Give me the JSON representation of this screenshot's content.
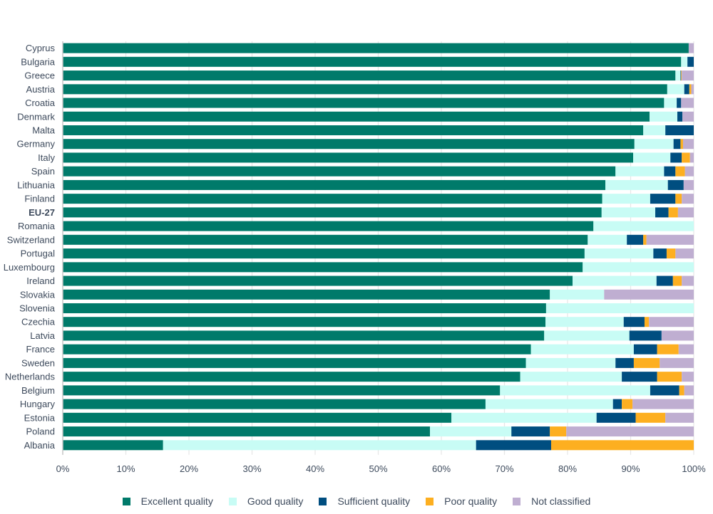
{
  "chart_data": {
    "type": "bar",
    "orientation": "horizontal",
    "stacked": true,
    "title": "",
    "xlabel": "",
    "ylabel": "",
    "xlim": [
      0,
      100
    ],
    "x_unit": "%",
    "x_ticks": [
      "0%",
      "10%",
      "20%",
      "30%",
      "40%",
      "50%",
      "60%",
      "70%",
      "80%",
      "90%",
      "100%"
    ],
    "grid": true,
    "legend_position": "bottom",
    "categories": [
      "Cyprus",
      "Bulgaria",
      "Greece",
      "Austria",
      "Croatia",
      "Denmark",
      "Malta",
      "Germany",
      "Italy",
      "Spain",
      "Lithuania",
      "Finland",
      "EU-27",
      "Romania",
      "Switzerland",
      "Portugal",
      "Luxembourg",
      "Ireland",
      "Slovakia",
      "Slovenia",
      "Czechia",
      "Latvia",
      "France",
      "Sweden",
      "Netherlands",
      "Belgium",
      "Hungary",
      "Estonia",
      "Poland",
      "Albania"
    ],
    "bold_categories": [
      "EU-27"
    ],
    "series": [
      {
        "name": "Excellent quality",
        "color": "#007a6a",
        "values": [
          99.2,
          98.0,
          97.1,
          95.8,
          95.3,
          93.0,
          92.0,
          90.6,
          90.4,
          87.6,
          86.0,
          85.5,
          85.4,
          84.1,
          83.2,
          82.7,
          82.4,
          80.8,
          77.2,
          76.6,
          76.5,
          76.3,
          74.2,
          73.4,
          72.5,
          69.3,
          67.0,
          61.6,
          58.2,
          15.9
        ]
      },
      {
        "name": "Good quality",
        "color": "#c8fcf5",
        "values": [
          0.0,
          1.0,
          0.8,
          2.7,
          2.0,
          4.4,
          3.5,
          6.2,
          5.9,
          7.7,
          9.9,
          7.6,
          8.5,
          15.9,
          6.2,
          10.9,
          17.6,
          13.3,
          8.6,
          23.4,
          12.4,
          13.5,
          16.3,
          14.2,
          16.1,
          23.8,
          20.2,
          23.0,
          12.9,
          49.6
        ]
      },
      {
        "name": "Sufficient quality",
        "color": "#004e80",
        "values": [
          0.0,
          1.0,
          0.1,
          0.8,
          0.7,
          0.8,
          4.5,
          1.1,
          1.8,
          1.8,
          2.5,
          4.0,
          2.1,
          0.0,
          2.6,
          2.1,
          0.0,
          2.6,
          0.0,
          0.0,
          3.3,
          5.1,
          3.7,
          2.9,
          5.6,
          4.6,
          1.4,
          6.2,
          6.1,
          11.9
        ]
      },
      {
        "name": "Poor quality",
        "color": "#fdaf20",
        "values": [
          0.0,
          0.0,
          0.1,
          0.3,
          0.0,
          0.0,
          0.0,
          0.4,
          1.3,
          1.5,
          0.0,
          1.0,
          1.5,
          0.0,
          0.5,
          1.4,
          0.0,
          1.4,
          0.0,
          0.0,
          0.7,
          0.0,
          3.4,
          4.1,
          3.9,
          0.8,
          1.7,
          4.7,
          2.6,
          22.6
        ]
      },
      {
        "name": "Not classified",
        "color": "#bfaed1",
        "values": [
          0.8,
          0.0,
          1.9,
          0.4,
          2.0,
          1.8,
          0.0,
          1.7,
          0.6,
          1.4,
          1.6,
          1.9,
          2.5,
          0.0,
          7.5,
          2.9,
          0.0,
          1.9,
          14.2,
          0.0,
          7.1,
          5.1,
          2.4,
          5.4,
          1.9,
          1.5,
          9.7,
          4.5,
          20.2,
          0.0
        ]
      }
    ]
  },
  "legend": {
    "items": [
      {
        "label": "Excellent quality",
        "color": "#007a6a"
      },
      {
        "label": "Good quality",
        "color": "#c8fcf5"
      },
      {
        "label": "Sufficient quality",
        "color": "#004e80"
      },
      {
        "label": "Poor quality",
        "color": "#fdaf20"
      },
      {
        "label": "Not classified",
        "color": "#bfaed1"
      }
    ]
  }
}
